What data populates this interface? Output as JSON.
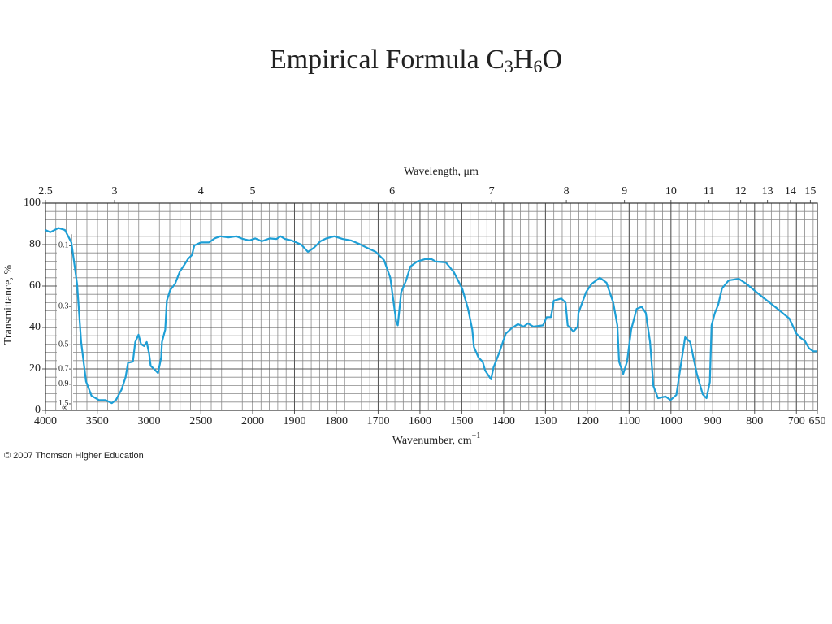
{
  "chart_data": {
    "type": "line",
    "title_parts": [
      "Empirical Formula C",
      "3",
      "H",
      "6",
      "O"
    ],
    "x_label_parts": [
      "Wavenumber, cm",
      "−1"
    ],
    "x2_label": "Wavelength, μm",
    "y_label": "Transmittance, %",
    "footnote": "© 2007 Thomson Higher Education",
    "xlim": [
      4000,
      650
    ],
    "xticks": [
      4000,
      3500,
      3000,
      2500,
      2000,
      1900,
      1800,
      1700,
      1600,
      1500,
      1400,
      1300,
      1200,
      1100,
      1000,
      900,
      800,
      700,
      650
    ],
    "x2ticks": [
      2.5,
      3,
      4,
      5,
      6,
      7,
      8,
      9,
      10,
      11,
      12,
      13,
      14,
      15
    ],
    "ylim": [
      0,
      100
    ],
    "yticks": [
      0,
      20,
      40,
      60,
      80,
      100
    ],
    "absorbance_ticks": [
      0.1,
      0.3,
      0.5,
      0.7,
      0.9,
      1.5
    ],
    "absorbance_inf": "∞",
    "grid": true,
    "x": [
      4000,
      3953,
      3875,
      3812,
      3750,
      3695,
      3656,
      3609,
      3555,
      3484,
      3422,
      3359,
      3320,
      3266,
      3227,
      3203,
      3156,
      3133,
      3102,
      3078,
      3047,
      3023,
      3000,
      2984,
      2945,
      2914,
      2883,
      2875,
      2844,
      2828,
      2797,
      2750,
      2703,
      2656,
      2625,
      2586,
      2563,
      2500,
      2422,
      2367,
      2313,
      2234,
      2156,
      2094,
      2031,
      1994,
      1978,
      1959,
      1943,
      1933,
      1923,
      1907,
      1884,
      1868,
      1854,
      1838,
      1824,
      1805,
      1785,
      1765,
      1746,
      1726,
      1706,
      1686,
      1671,
      1657,
      1653,
      1645,
      1633,
      1623,
      1607,
      1588,
      1572,
      1562,
      1538,
      1519,
      1499,
      1485,
      1475,
      1471,
      1460,
      1450,
      1444,
      1430,
      1424,
      1411,
      1395,
      1381,
      1366,
      1352,
      1342,
      1329,
      1306,
      1297,
      1287,
      1280,
      1262,
      1252,
      1247,
      1233,
      1223,
      1221,
      1203,
      1190,
      1170,
      1154,
      1138,
      1128,
      1124,
      1114,
      1105,
      1095,
      1082,
      1070,
      1060,
      1050,
      1042,
      1031,
      1013,
      1001,
      987,
      978,
      966,
      954,
      938,
      924,
      915,
      907,
      903,
      895,
      887,
      878,
      862,
      838,
      819,
      789,
      750,
      717,
      700,
      690,
      680,
      670,
      660,
      652
    ],
    "series": [
      {
        "color": "#1e9fd6",
        "values": [
          87,
          86,
          88,
          87,
          81,
          61,
          33,
          14,
          7,
          5,
          5,
          3.5,
          5,
          10,
          16,
          23,
          23.5,
          33,
          36.5,
          32,
          31,
          33,
          27.5,
          21.5,
          19.6,
          18,
          25.5,
          33,
          39,
          53,
          58,
          61,
          67,
          70.5,
          73,
          75,
          79.6,
          81,
          81,
          83,
          84,
          83.5,
          84,
          82.7,
          82,
          83,
          81.6,
          83,
          82.7,
          84,
          82.7,
          82,
          80,
          76.5,
          78.4,
          81.6,
          83,
          84,
          82.7,
          82,
          80.4,
          78.4,
          76.5,
          72.5,
          64,
          43,
          41,
          57,
          62.7,
          69.4,
          71.8,
          73,
          73,
          71.8,
          71.4,
          66.7,
          58.8,
          49,
          39,
          30.6,
          25.5,
          23.5,
          19.2,
          15,
          20.8,
          27.5,
          37,
          39.6,
          41.6,
          40.4,
          42,
          40.4,
          41,
          45,
          45,
          53,
          54,
          52,
          41,
          38,
          40.4,
          47,
          57,
          61,
          64,
          61.6,
          52,
          41,
          23.5,
          17.6,
          23.5,
          39,
          49,
          50,
          47,
          33,
          11.8,
          5.9,
          6.7,
          5,
          7.5,
          19.6,
          35.3,
          33,
          17.6,
          7.8,
          5.9,
          13.7,
          41,
          47,
          51,
          58.8,
          62.7,
          63.5,
          61,
          56,
          49.8,
          44.3,
          37,
          35,
          33.5,
          30,
          28.5,
          28.5
        ]
      }
    ]
  }
}
